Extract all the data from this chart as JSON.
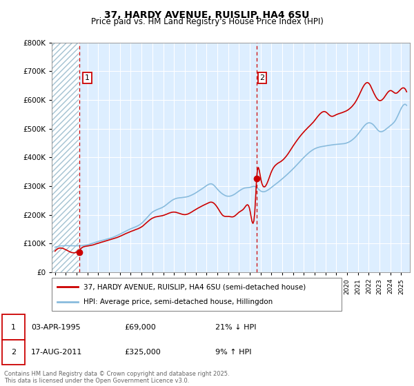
{
  "title1": "37, HARDY AVENUE, RUISLIP, HA4 6SU",
  "title2": "Price paid vs. HM Land Registry's House Price Index (HPI)",
  "legend_label1": "37, HARDY AVENUE, RUISLIP, HA4 6SU (semi-detached house)",
  "legend_label2": "HPI: Average price, semi-detached house, Hillingdon",
  "footnote": "Contains HM Land Registry data © Crown copyright and database right 2025.\nThis data is licensed under the Open Government Licence v3.0.",
  "point1_date": "03-APR-1995",
  "point1_price": "£69,000",
  "point1_hpi": "21% ↓ HPI",
  "point1_year": 1995.25,
  "point1_value": 69000,
  "point2_date": "17-AUG-2011",
  "point2_price": "£325,000",
  "point2_hpi": "9% ↑ HPI",
  "point2_year": 2011.63,
  "point2_value": 325000,
  "color_red": "#cc0000",
  "color_blue": "#88bbdd",
  "color_bg": "#ddeeff",
  "color_hatch_bg": "#c8dde8",
  "ylim": [
    0,
    800000
  ],
  "xlim_start": 1992.7,
  "xlim_end": 2025.8
}
